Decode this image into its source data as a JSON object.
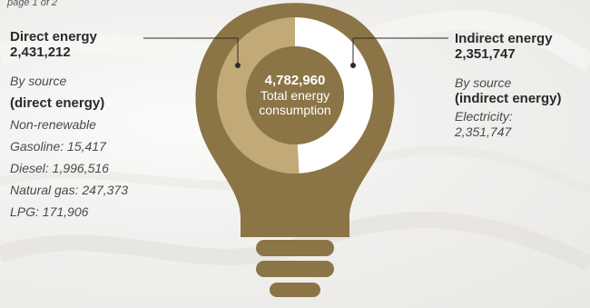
{
  "top_caption": "page 1 of 2",
  "colors": {
    "bulb_dark": "#8b7446",
    "bulb_light": "#c2aa78",
    "ring_white": "#ffffff",
    "leader_line": "#2a2a2a"
  },
  "center": {
    "value": "4,782,960",
    "label_line1": "Total energy",
    "label_line2": "consumption"
  },
  "direct": {
    "label": "Direct energy",
    "value": "2,431,212",
    "by_source": "By source",
    "by_source_bold": "(direct energy)",
    "category": "Non-renewable",
    "items": [
      "Gasoline: 15,417",
      "Diesel: 1,996,516",
      "Natural gas: 247,373",
      "LPG: 171,906"
    ]
  },
  "indirect": {
    "label": "Indirect energy",
    "value": "2,351,747",
    "by_source": "By source",
    "by_source_bold": "(indirect energy)",
    "items": [
      "Electricity:",
      "2,351,747"
    ]
  },
  "chart_data": {
    "type": "pie",
    "categories": [
      "Direct energy",
      "Indirect energy"
    ],
    "values": [
      2431212,
      2351747
    ],
    "total": 4782960
  }
}
